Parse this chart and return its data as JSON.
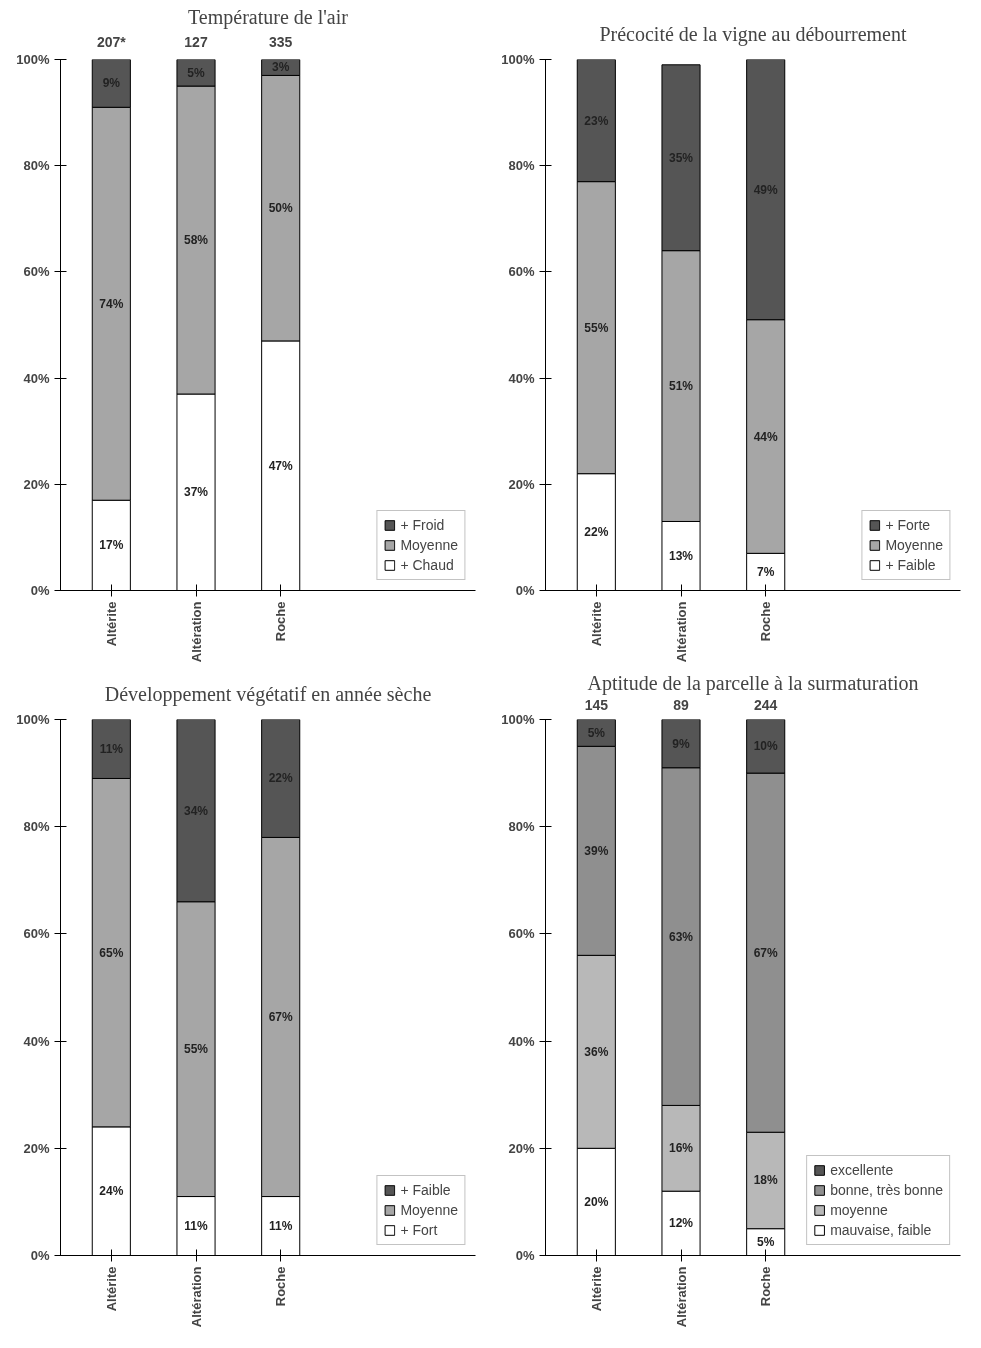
{
  "chart_data": [
    {
      "type": "bar",
      "title": "Température de l'air",
      "stacked": true,
      "categories": [
        "Altérite",
        "Altération",
        "Roche"
      ],
      "ylim": [
        0,
        100
      ],
      "yticks": [
        {
          "value": 0,
          "label": "0%"
        },
        {
          "value": 20,
          "label": "20%"
        },
        {
          "value": 40,
          "label": "40%"
        },
        {
          "value": 60,
          "label": "60%"
        },
        {
          "value": 80,
          "label": "80%"
        },
        {
          "value": 100,
          "label": "100%"
        }
      ],
      "grid": false,
      "legend": "bottom right",
      "annotations": [
        "207*",
        "127",
        "335"
      ],
      "series": [
        {
          "name": "+ Chaud",
          "color": "#ffffff",
          "values": [
            17,
            37,
            47
          ],
          "value_labels": [
            "17%",
            "37%",
            "47%"
          ]
        },
        {
          "name": "Moyenne",
          "color": "#a6a6a6",
          "values": [
            74,
            58,
            50
          ],
          "value_labels": [
            "74%",
            "58%",
            "50%"
          ]
        },
        {
          "name": "+ Froid",
          "color": "#555555",
          "values": [
            9,
            5,
            3
          ],
          "value_labels": [
            "9%",
            "5%",
            "3%"
          ]
        }
      ]
    },
    {
      "type": "bar",
      "title": "Précocité de la vigne au débourrement",
      "stacked": true,
      "categories": [
        "Altérite",
        "Altération",
        "Roche"
      ],
      "ylim": [
        0,
        100
      ],
      "yticks": [
        {
          "value": 0,
          "label": "0%"
        },
        {
          "value": 20,
          "label": "20%"
        },
        {
          "value": 40,
          "label": "40%"
        },
        {
          "value": 60,
          "label": "60%"
        },
        {
          "value": 80,
          "label": "80%"
        },
        {
          "value": 100,
          "label": "100%"
        }
      ],
      "grid": false,
      "legend": "bottom right",
      "series": [
        {
          "name": "+ Faible",
          "color": "#ffffff",
          "values": [
            22,
            13,
            7
          ],
          "value_labels": [
            "22%",
            "13%",
            "7%"
          ]
        },
        {
          "name": "Moyenne",
          "color": "#a6a6a6",
          "values": [
            55,
            51,
            44
          ],
          "value_labels": [
            "55%",
            "51%",
            "44%"
          ]
        },
        {
          "name": "+ Forte",
          "color": "#555555",
          "values": [
            23,
            35,
            49
          ],
          "value_labels": [
            "23%",
            "35%",
            "49%"
          ]
        }
      ]
    },
    {
      "type": "bar",
      "title": "Développement végétatif en année sèche",
      "stacked": true,
      "categories": [
        "Altérite",
        "Altération",
        "Roche"
      ],
      "ylim": [
        0,
        100
      ],
      "yticks": [
        {
          "value": 0,
          "label": "0%"
        },
        {
          "value": 20,
          "label": "20%"
        },
        {
          "value": 40,
          "label": "40%"
        },
        {
          "value": 60,
          "label": "60%"
        },
        {
          "value": 80,
          "label": "80%"
        },
        {
          "value": 100,
          "label": "100%"
        }
      ],
      "grid": false,
      "legend": "bottom right",
      "series": [
        {
          "name": "+ Fort",
          "color": "#ffffff",
          "values": [
            24,
            11,
            11
          ],
          "value_labels": [
            "24%",
            "11%",
            "11%"
          ]
        },
        {
          "name": "Moyenne",
          "color": "#a6a6a6",
          "values": [
            65,
            55,
            67
          ],
          "value_labels": [
            "65%",
            "55%",
            "67%"
          ]
        },
        {
          "name": "+ Faible",
          "color": "#555555",
          "values": [
            11,
            34,
            22
          ],
          "value_labels": [
            "11%",
            "34%",
            "22%"
          ]
        }
      ]
    },
    {
      "type": "bar",
      "title": "Aptitude de la parcelle à la surmaturation",
      "stacked": true,
      "categories": [
        "Altérite",
        "Altération",
        "Roche"
      ],
      "ylim": [
        0,
        100
      ],
      "yticks": [
        {
          "value": 0,
          "label": "0%"
        },
        {
          "value": 20,
          "label": "20%"
        },
        {
          "value": 40,
          "label": "40%"
        },
        {
          "value": 60,
          "label": "60%"
        },
        {
          "value": 80,
          "label": "80%"
        },
        {
          "value": 100,
          "label": "100%"
        }
      ],
      "grid": false,
      "legend": "bottom right",
      "annotations": [
        "145",
        "89",
        "244"
      ],
      "series": [
        {
          "name": "mauvaise, faible",
          "color": "#ffffff",
          "values": [
            20,
            12,
            5
          ],
          "value_labels": [
            "20%",
            "12%",
            "5%"
          ]
        },
        {
          "name": "moyenne",
          "color": "#b8b8b8",
          "values": [
            36,
            16,
            18
          ],
          "value_labels": [
            "36%",
            "16%",
            "18%"
          ]
        },
        {
          "name": "bonne, très bonne",
          "color": "#8f8f8f",
          "values": [
            39,
            63,
            67
          ],
          "value_labels": [
            "39%",
            "63%",
            "67%"
          ]
        },
        {
          "name": "excellente",
          "color": "#555555",
          "values": [
            5,
            9,
            10
          ],
          "value_labels": [
            "5%",
            "9%",
            "10%"
          ]
        }
      ]
    }
  ]
}
